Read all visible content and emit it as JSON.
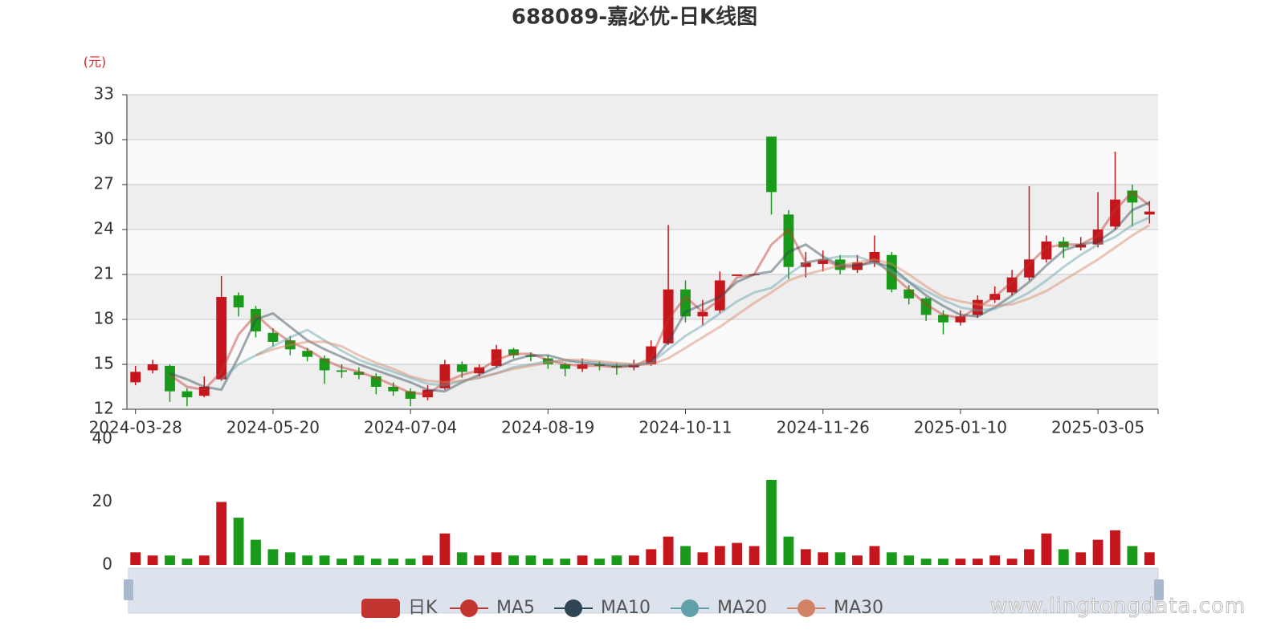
{
  "chart_data": {
    "type": "candlestick",
    "title": "688089-嘉必优-日K线图",
    "y_unit": "(元)",
    "watermark": "www.lingtongdata.com",
    "categories": [
      "2024-03-28",
      null,
      null,
      null,
      null,
      null,
      null,
      null,
      "2024-05-20",
      null,
      null,
      null,
      null,
      null,
      null,
      null,
      "2024-07-04",
      null,
      null,
      null,
      null,
      null,
      null,
      null,
      "2024-08-19",
      null,
      null,
      null,
      null,
      null,
      null,
      null,
      "2024-10-11",
      null,
      null,
      null,
      null,
      null,
      null,
      null,
      "2024-11-26",
      null,
      null,
      null,
      null,
      null,
      null,
      null,
      "2025-01-10",
      null,
      null,
      null,
      null,
      null,
      null,
      null,
      "2025-03-05",
      null,
      null,
      null
    ],
    "ylim": [
      12,
      33
    ],
    "yticks": [
      12,
      15,
      18,
      21,
      24,
      27,
      30,
      33
    ],
    "series": [
      {
        "name": "日K",
        "type": "candlestick",
        "color": "#c23531",
        "up_color": "#c4161c",
        "down_color": "#1a9a1a",
        "values": [
          [
            13.8,
            14.5,
            13.6,
            14.9
          ],
          [
            14.6,
            15.0,
            14.4,
            15.3
          ],
          [
            14.9,
            13.2,
            12.5,
            15.0
          ],
          [
            13.2,
            12.8,
            12.2,
            13.4
          ],
          [
            12.9,
            13.5,
            12.8,
            14.2
          ],
          [
            14.0,
            19.5,
            13.9,
            20.9
          ],
          [
            19.6,
            18.8,
            18.2,
            19.8
          ],
          [
            18.7,
            17.2,
            16.8,
            18.9
          ],
          [
            17.1,
            16.5,
            16.2,
            17.4
          ],
          [
            16.6,
            16.0,
            15.6,
            16.9
          ],
          [
            15.9,
            15.5,
            15.2,
            16.1
          ],
          [
            15.4,
            14.6,
            13.7,
            15.6
          ],
          [
            14.6,
            14.5,
            14.1,
            15.0
          ],
          [
            14.5,
            14.3,
            14.0,
            14.8
          ],
          [
            14.2,
            13.5,
            13.0,
            14.4
          ],
          [
            13.5,
            13.2,
            12.9,
            13.8
          ],
          [
            13.2,
            12.7,
            12.2,
            13.4
          ],
          [
            12.8,
            13.3,
            12.6,
            13.6
          ],
          [
            13.4,
            15.0,
            13.3,
            15.3
          ],
          [
            15.0,
            14.5,
            14.1,
            15.2
          ],
          [
            14.4,
            14.8,
            14.2,
            15.0
          ],
          [
            14.9,
            16.0,
            14.8,
            16.3
          ],
          [
            16.0,
            15.6,
            15.4,
            16.1
          ],
          [
            15.6,
            15.5,
            15.2,
            15.8
          ],
          [
            15.4,
            15.0,
            14.7,
            15.6
          ],
          [
            15.0,
            14.7,
            14.2,
            15.1
          ],
          [
            14.7,
            15.0,
            14.5,
            15.4
          ],
          [
            15.0,
            14.9,
            14.6,
            15.2
          ],
          [
            14.9,
            14.8,
            14.3,
            15.1
          ],
          [
            14.8,
            15.0,
            14.6,
            15.3
          ],
          [
            15.0,
            16.2,
            14.9,
            16.6
          ],
          [
            16.4,
            20.0,
            16.3,
            24.3
          ],
          [
            20.0,
            18.2,
            17.8,
            20.6
          ],
          [
            18.2,
            18.5,
            17.6,
            19.3
          ],
          [
            18.6,
            20.6,
            18.4,
            21.2
          ],
          [
            20.9,
            21.0,
            20.9,
            21.0
          ],
          [
            21.0,
            21.0,
            21.0,
            21.0
          ],
          [
            30.2,
            26.5,
            25.0,
            30.2
          ],
          [
            25.0,
            21.5,
            20.7,
            25.3
          ],
          [
            21.5,
            21.8,
            20.8,
            22.5
          ],
          [
            21.7,
            22.0,
            21.2,
            22.6
          ],
          [
            22.0,
            21.3,
            21.0,
            22.3
          ],
          [
            21.3,
            21.8,
            21.1,
            22.3
          ],
          [
            21.8,
            22.5,
            21.5,
            23.6
          ],
          [
            22.3,
            20.0,
            19.8,
            22.5
          ],
          [
            20.0,
            19.4,
            19.0,
            20.3
          ],
          [
            19.4,
            18.3,
            17.9,
            19.5
          ],
          [
            18.3,
            17.8,
            17.0,
            18.6
          ],
          [
            17.8,
            18.2,
            17.6,
            18.6
          ],
          [
            18.3,
            19.3,
            18.1,
            19.6
          ],
          [
            19.3,
            19.7,
            19.1,
            20.2
          ],
          [
            19.8,
            20.8,
            19.6,
            21.3
          ],
          [
            20.8,
            22.0,
            20.6,
            26.9
          ],
          [
            22.0,
            23.2,
            21.8,
            23.6
          ],
          [
            23.2,
            22.8,
            22.1,
            23.5
          ],
          [
            22.8,
            23.0,
            22.6,
            23.5
          ],
          [
            23.0,
            24.0,
            22.8,
            26.5
          ],
          [
            24.2,
            26.0,
            24.0,
            29.2
          ],
          [
            26.6,
            25.8,
            24.2,
            27.0
          ],
          [
            25.0,
            25.2,
            24.4,
            25.9
          ]
        ]
      },
      {
        "name": "MA5",
        "type": "line",
        "color": "#c23531",
        "values": [
          null,
          null,
          14.3,
          13.5,
          13.3,
          14.5,
          17.0,
          18.3,
          17.3,
          16.5,
          16.0,
          15.3,
          14.8,
          14.5,
          14.1,
          13.6,
          13.1,
          13.0,
          13.8,
          14.3,
          14.6,
          15.3,
          15.7,
          15.7,
          15.3,
          15.0,
          14.9,
          14.9,
          14.8,
          14.9,
          15.4,
          18.0,
          19.5,
          18.5,
          19.3,
          20.8,
          21.0,
          23.0,
          24.0,
          21.8,
          22.0,
          21.5,
          21.5,
          22.0,
          21.0,
          20.0,
          19.0,
          18.3,
          18.1,
          18.8,
          19.5,
          20.5,
          21.7,
          22.8,
          23.0,
          23.0,
          23.6,
          25.3,
          26.5,
          25.6
        ]
      },
      {
        "name": "MA10",
        "type": "line",
        "color": "#2f4554",
        "values": [
          null,
          null,
          14.4,
          14.0,
          13.5,
          13.3,
          15.5,
          18.0,
          18.4,
          17.5,
          16.6,
          16.0,
          15.5,
          15.0,
          14.6,
          14.2,
          13.8,
          13.3,
          13.2,
          13.8,
          14.3,
          14.8,
          15.3,
          15.6,
          15.6,
          15.3,
          15.1,
          15.0,
          14.9,
          14.9,
          15.1,
          16.5,
          18.5,
          19.0,
          19.5,
          20.5,
          21.0,
          21.2,
          22.5,
          23.0,
          22.2,
          21.6,
          21.6,
          21.8,
          21.5,
          20.5,
          19.6,
          18.9,
          18.3,
          18.2,
          18.8,
          19.6,
          20.5,
          21.6,
          22.6,
          23.0,
          23.2,
          24.0,
          25.3,
          25.8
        ]
      },
      {
        "name": "MA20",
        "type": "line",
        "color": "#61a0a8",
        "values": [
          null,
          null,
          null,
          null,
          null,
          14.0,
          15.0,
          15.6,
          16.2,
          16.8,
          17.3,
          16.6,
          15.9,
          15.3,
          14.9,
          14.5,
          14.1,
          13.7,
          13.6,
          13.9,
          14.1,
          14.4,
          14.8,
          15.0,
          15.2,
          15.2,
          15.2,
          15.1,
          15.0,
          15.0,
          15.1,
          16.0,
          16.9,
          17.6,
          18.4,
          19.2,
          19.8,
          20.1,
          21.0,
          21.8,
          22.0,
          22.2,
          22.2,
          21.8,
          21.2,
          20.5,
          19.9,
          19.3,
          18.8,
          18.6,
          18.7,
          19.2,
          19.8,
          20.6,
          21.5,
          22.3,
          23.0,
          23.5,
          24.3,
          24.8
        ]
      },
      {
        "name": "MA30",
        "type": "line",
        "color": "#d48265",
        "values": [
          null,
          null,
          null,
          null,
          null,
          null,
          null,
          15.6,
          16.0,
          16.3,
          16.5,
          16.5,
          16.2,
          15.6,
          15.1,
          14.7,
          14.2,
          13.9,
          13.8,
          13.9,
          14.1,
          14.4,
          14.7,
          14.9,
          15.1,
          15.3,
          15.3,
          15.2,
          15.1,
          15.0,
          15.0,
          15.4,
          16.1,
          16.8,
          17.5,
          18.3,
          19.1,
          19.8,
          20.6,
          21.0,
          21.3,
          21.6,
          21.8,
          22.0,
          21.7,
          21.0,
          20.2,
          19.5,
          19.2,
          19.0,
          18.9,
          19.0,
          19.4,
          19.9,
          20.6,
          21.3,
          22.0,
          22.8,
          23.6,
          24.3
        ]
      }
    ],
    "volume": {
      "ylim": [
        0,
        40
      ],
      "yticks": [
        0,
        20,
        40
      ],
      "values": [
        4,
        3,
        3,
        2,
        3,
        20,
        15,
        8,
        5,
        4,
        3,
        3,
        2,
        3,
        2,
        2,
        2,
        3,
        10,
        4,
        3,
        4,
        3,
        3,
        2,
        2,
        3,
        2,
        3,
        3,
        5,
        9,
        6,
        4,
        6,
        7,
        6,
        27,
        9,
        5,
        4,
        4,
        3,
        6,
        4,
        3,
        2,
        2,
        2,
        2,
        3,
        2,
        5,
        10,
        5,
        4,
        8,
        11,
        6,
        4
      ]
    }
  }
}
